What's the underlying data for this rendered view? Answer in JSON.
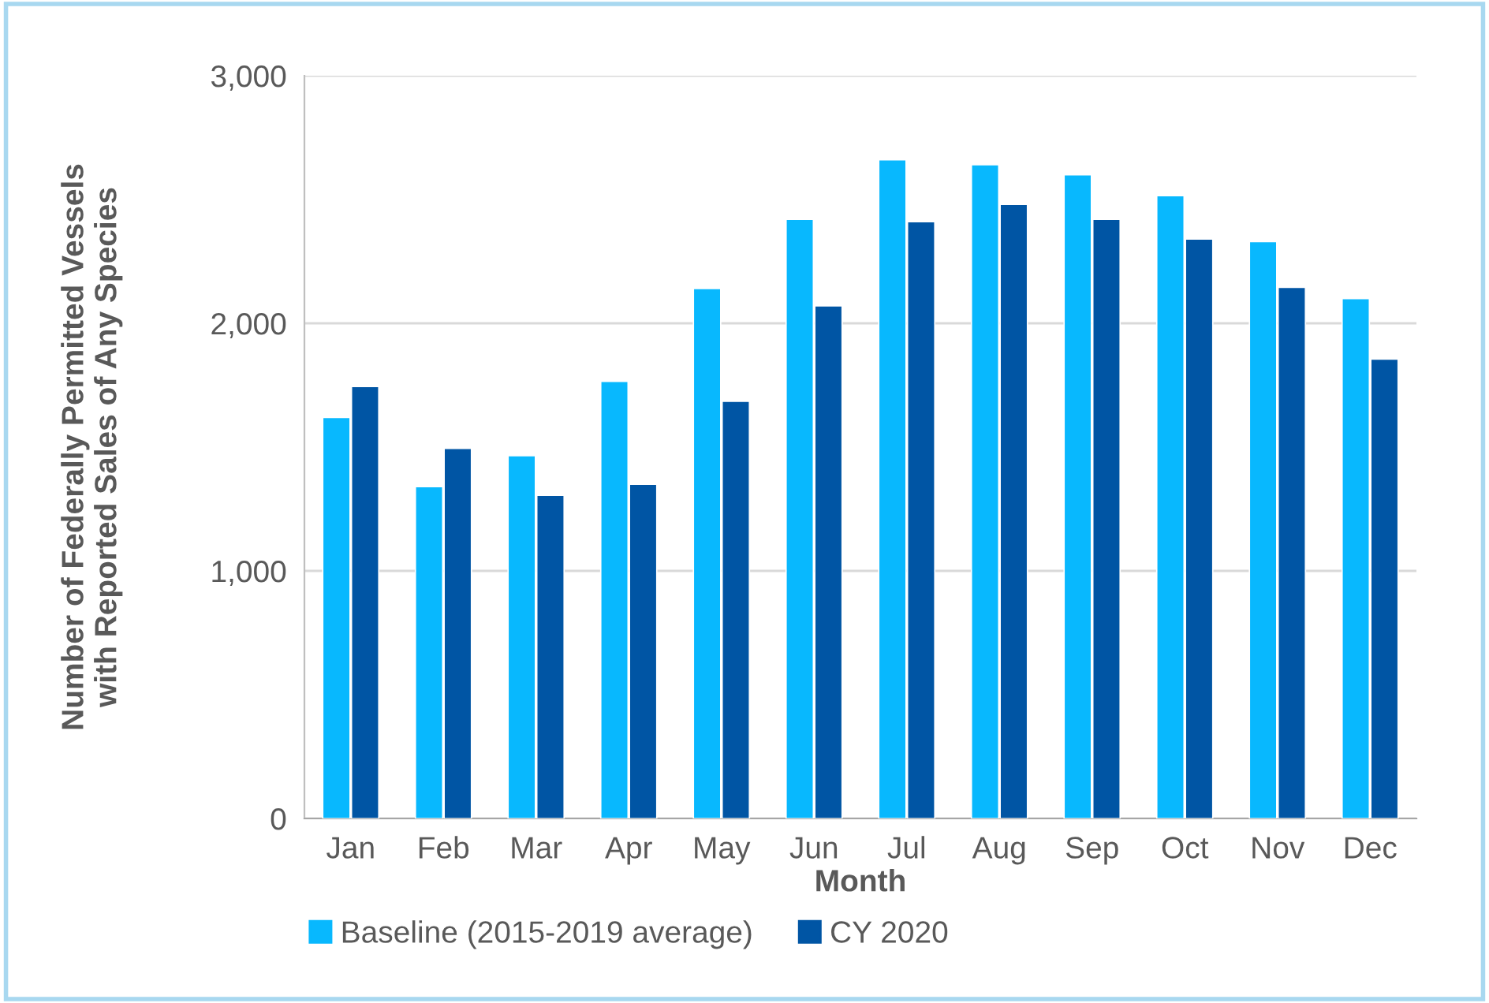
{
  "chart_data": {
    "type": "bar",
    "xlabel": "Month",
    "ylabel": "Number of Federally Permitted Vessels\nwith Reported Sales of Any Species",
    "categories": [
      "Jan",
      "Feb",
      "Mar",
      "Apr",
      "May",
      "Jun",
      "Jul",
      "Aug",
      "Sep",
      "Oct",
      "Nov",
      "Dec"
    ],
    "series": [
      {
        "name": "Baseline (2015-2019 average)",
        "color": "#08b8fe",
        "values": [
          1620,
          1340,
          1465,
          1765,
          2140,
          2420,
          2660,
          2640,
          2600,
          2515,
          2330,
          2100
        ]
      },
      {
        "name": "CY 2020",
        "color": "#0055a4",
        "values": [
          1745,
          1495,
          1305,
          1350,
          1685,
          2070,
          2410,
          2480,
          2420,
          2340,
          2145,
          1855
        ]
      }
    ],
    "ylim": [
      0,
      3000
    ],
    "yticks": [
      {
        "value": 0,
        "label": "0"
      },
      {
        "value": 1000,
        "label": "1,000"
      },
      {
        "value": 2000,
        "label": "2,000"
      },
      {
        "value": 3000,
        "label": "3,000"
      }
    ],
    "grid": "y",
    "legend": "bottom left"
  }
}
